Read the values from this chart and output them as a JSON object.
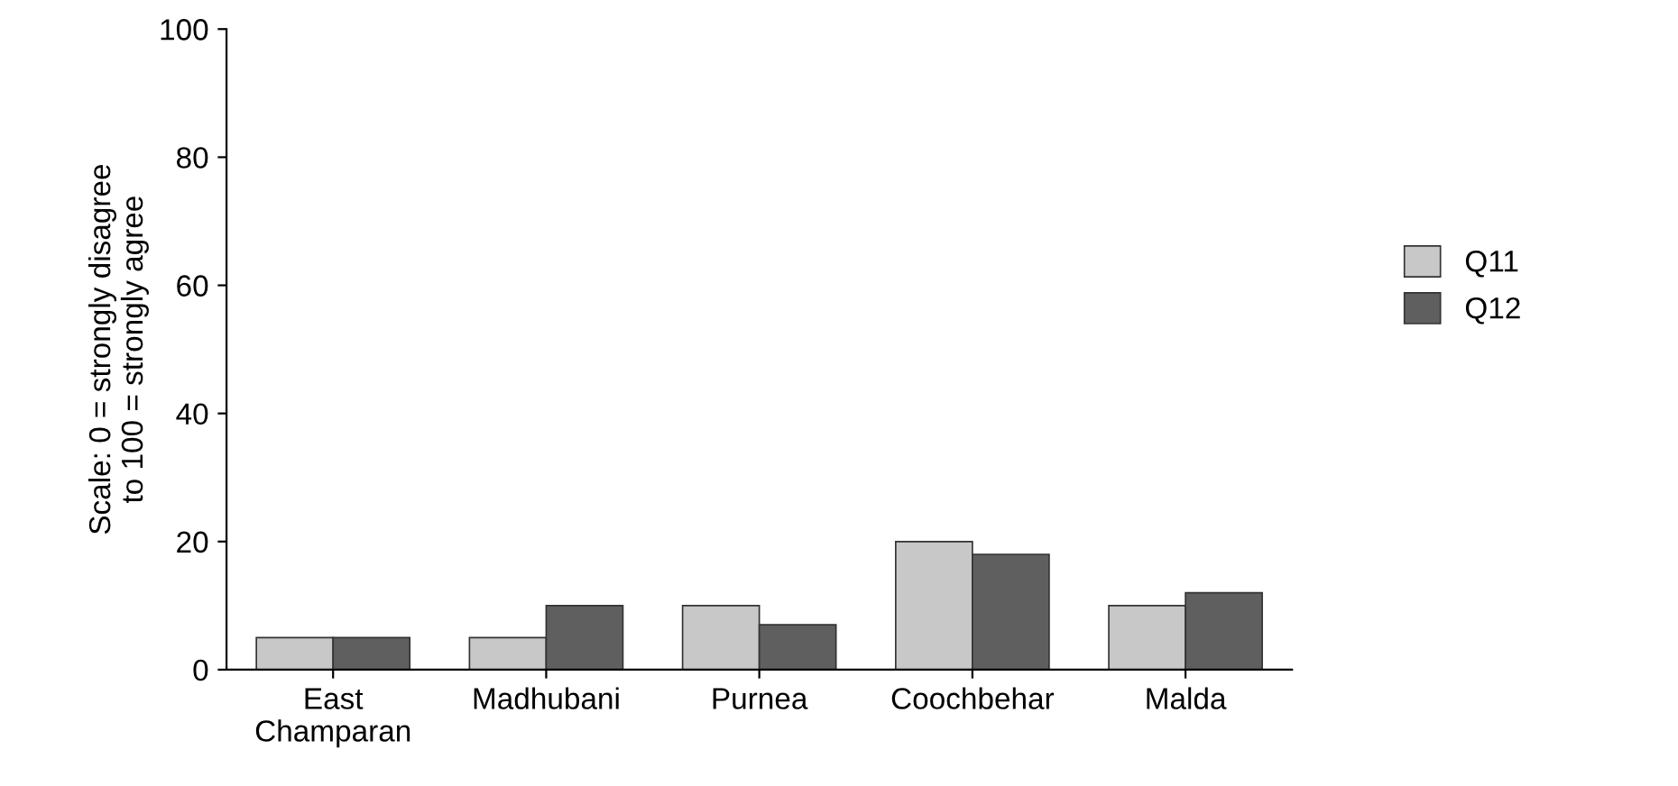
{
  "chart_data": {
    "type": "bar",
    "ylabel": "Scale: 0 = strongly disagree\nto 100 = strongly agree",
    "categories": [
      "East\nChamparan",
      "Madhubani",
      "Purnea",
      "Coochbehar",
      "Malda"
    ],
    "series": [
      {
        "name": "Q11",
        "color": "#c8c8c8",
        "values": [
          5,
          5,
          10,
          20,
          10
        ]
      },
      {
        "name": "Q12",
        "color": "#5f5f5f",
        "values": [
          5,
          10,
          7,
          18,
          12
        ]
      }
    ],
    "ylim": [
      0,
      100
    ],
    "yticks": [
      0,
      20,
      40,
      60,
      80,
      100
    ],
    "grid": false,
    "legend": "right"
  }
}
